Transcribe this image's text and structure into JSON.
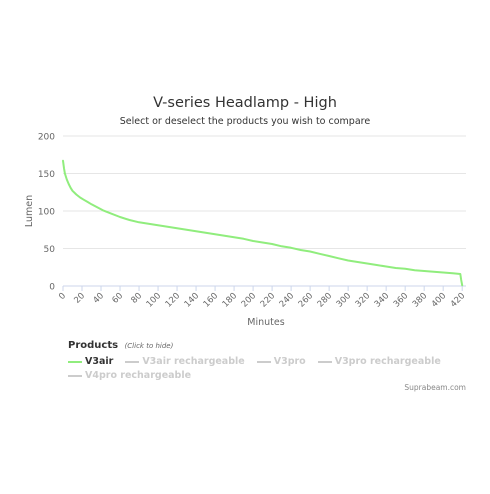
{
  "chart_data": {
    "type": "line",
    "title": "V-series Headlamp - High",
    "subtitle": "Select or deselect the products you wish to compare",
    "xlabel": "Minutes",
    "ylabel": "Lumen",
    "xlim": [
      0,
      424
    ],
    "ylim": [
      0,
      200
    ],
    "x_ticks": [
      "0",
      "20",
      "40",
      "60",
      "80",
      "100",
      "120",
      "140",
      "160",
      "180",
      "200",
      "220",
      "240",
      "260",
      "280",
      "300",
      "320",
      "340",
      "360",
      "380",
      "400",
      "420"
    ],
    "y_ticks": [
      "0",
      "50",
      "100",
      "150",
      "200"
    ],
    "grid": "horizontal",
    "legend_placement": "bottom-left",
    "series": [
      {
        "name": "V3air",
        "color": "#90ed7d",
        "visible": true,
        "x": [
          0,
          1,
          2,
          4,
          6,
          8,
          10,
          14,
          18,
          22,
          26,
          30,
          36,
          42,
          50,
          60,
          70,
          80,
          90,
          100,
          110,
          120,
          130,
          140,
          150,
          160,
          170,
          180,
          190,
          200,
          210,
          220,
          230,
          240,
          250,
          260,
          270,
          280,
          290,
          300,
          310,
          320,
          330,
          340,
          350,
          360,
          370,
          380,
          390,
          400,
          410,
          418,
          419,
          420
        ],
        "y": [
          167,
          157,
          150,
          142,
          136,
          131,
          127,
          122,
          118,
          115,
          112,
          109,
          105,
          101,
          97,
          92,
          88,
          85,
          83,
          81,
          79,
          77,
          75,
          73,
          71,
          69,
          67,
          65,
          63,
          60,
          58,
          56,
          53,
          51,
          48,
          46,
          43,
          40,
          37,
          34,
          32,
          30,
          28,
          26,
          24,
          23,
          21,
          20,
          19,
          18,
          17,
          16,
          8,
          1
        ]
      },
      {
        "name": "V3air rechargeable",
        "color": "#cccccc",
        "visible": false
      },
      {
        "name": "V3pro",
        "color": "#cccccc",
        "visible": false
      },
      {
        "name": "V3pro rechargeable",
        "color": "#cccccc",
        "visible": false
      },
      {
        "name": "V4pro rechargeable",
        "color": "#cccccc",
        "visible": false
      }
    ]
  },
  "legend": {
    "title": "Products",
    "hint": "(Click to hide)"
  },
  "credits": "Suprabeam.com"
}
